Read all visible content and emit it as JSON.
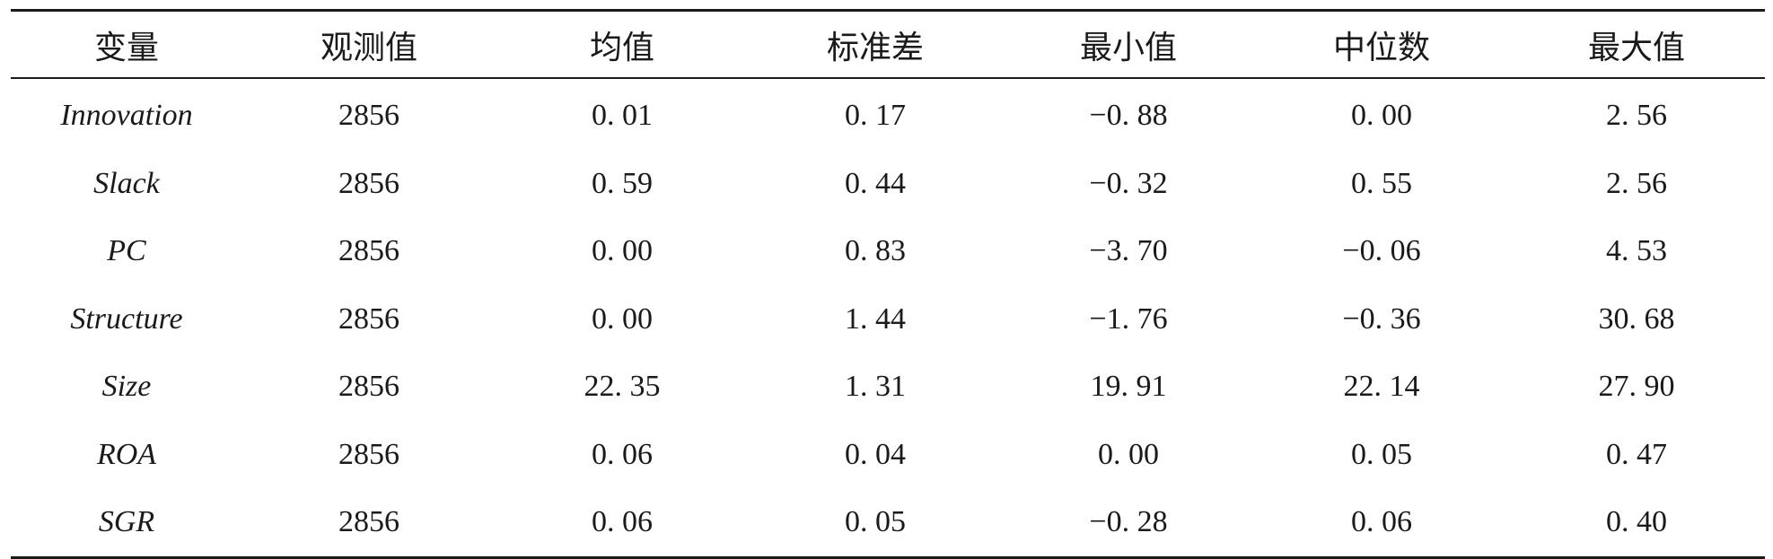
{
  "table": {
    "headers": [
      "变量",
      "观测值",
      "均值",
      "标准差",
      "最小值",
      "中位数",
      "最大值"
    ],
    "rows": [
      [
        "Innovation",
        "2856",
        "0. 01",
        "0. 17",
        "−0. 88",
        "0. 00",
        "2. 56"
      ],
      [
        "Slack",
        "2856",
        "0. 59",
        "0. 44",
        "−0. 32",
        "0. 55",
        "2. 56"
      ],
      [
        "PC",
        "2856",
        "0. 00",
        "0. 83",
        "−3. 70",
        "−0. 06",
        "4. 53"
      ],
      [
        "Structure",
        "2856",
        "0. 00",
        "1. 44",
        "−1. 76",
        "−0. 36",
        "30. 68"
      ],
      [
        "Size",
        "2856",
        "22. 35",
        "1. 31",
        "19. 91",
        "22. 14",
        "27. 90"
      ],
      [
        "ROA",
        "2856",
        "0. 06",
        "0. 04",
        "0. 00",
        "0. 05",
        "0. 47"
      ],
      [
        "SGR",
        "2856",
        "0. 06",
        "0. 05",
        "−0. 28",
        "0. 06",
        "0. 40"
      ]
    ]
  }
}
